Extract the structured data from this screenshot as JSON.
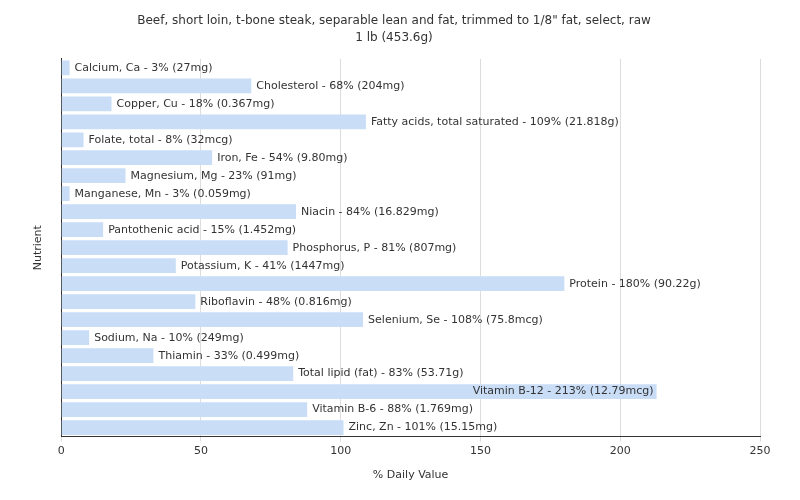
{
  "chart_data": {
    "type": "bar",
    "orientation": "horizontal",
    "title": "Beef, short loin, t-bone steak, separable lean and fat, trimmed to 1/8\" fat, select, raw",
    "subtitle": "1 lb (453.6g)",
    "x_label": "% Daily Value",
    "y_label": "Nutrient",
    "categories": [
      "Calcium, Ca - 3% (27mg)",
      "Cholesterol - 68% (204mg)",
      "Copper, Cu - 18% (0.367mg)",
      "Fatty acids, total saturated - 109% (21.818g)",
      "Folate, total - 8% (32mcg)",
      "Iron, Fe - 54% (9.80mg)",
      "Magnesium, Mg - 23% (91mg)",
      "Manganese, Mn - 3% (0.059mg)",
      "Niacin - 84% (16.829mg)",
      "Pantothenic acid - 15% (1.452mg)",
      "Phosphorus, P - 81% (807mg)",
      "Potassium, K - 41% (1447mg)",
      "Protein - 180% (90.22g)",
      "Riboflavin - 48% (0.816mg)",
      "Selenium, Se - 108% (75.8mcg)",
      "Sodium, Na - 10% (249mg)",
      "Thiamin - 33% (0.499mg)",
      "Total lipid (fat) - 83% (53.71g)",
      "Vitamin B-12 - 213% (12.79mcg)",
      "Vitamin B-6 - 88% (1.769mg)",
      "Zinc, Zn - 101% (15.15mg)"
    ],
    "values": [
      3,
      68,
      18,
      109,
      8,
      54,
      23,
      3,
      84,
      15,
      81,
      41,
      180,
      48,
      108,
      10,
      33,
      83,
      213,
      88,
      101
    ],
    "color": "#c9ddf7",
    "xlim": [
      0,
      250
    ],
    "xticks": [
      0,
      50,
      100,
      150,
      200,
      250
    ],
    "grid": true,
    "tick_labels": "x"
  }
}
